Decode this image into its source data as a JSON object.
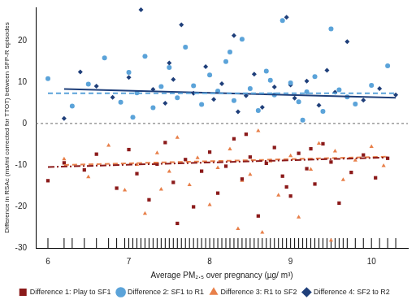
{
  "chart_data": {
    "type": "scatter",
    "x_label": "Average PM₂.₅ over pregnancy (µg/ m³)",
    "y_label": "Difference in RSAc (ms/ml corrected for TTOT) between SFP-R episodes",
    "xlim": [
      5.85,
      10.45
    ],
    "xticks": [
      6,
      7,
      8,
      9,
      10
    ],
    "ylim": [
      -30,
      28
    ],
    "yticks": [
      -30,
      -20,
      -10,
      0,
      10,
      20
    ],
    "grid": false,
    "legend": "bottom",
    "hline": 0,
    "rug": [
      6.0,
      6.2,
      6.3,
      6.45,
      6.6,
      6.75,
      6.85,
      6.95,
      7.0,
      7.05,
      7.1,
      7.15,
      7.2,
      7.25,
      7.3,
      7.35,
      7.4,
      7.45,
      7.5,
      7.55,
      7.6,
      7.65,
      7.7,
      7.75,
      7.8,
      7.85,
      7.9,
      7.95,
      8.0,
      8.05,
      8.1,
      8.15,
      8.2,
      8.25,
      8.3,
      8.35,
      8.4,
      8.45,
      8.5,
      8.55,
      8.6,
      8.65,
      8.7,
      8.75,
      8.8,
      8.85,
      8.9,
      8.95,
      9.0,
      9.05,
      9.1,
      9.15,
      9.2,
      9.25,
      9.3,
      9.35,
      9.4,
      9.45,
      9.5,
      9.55,
      9.6,
      9.65,
      9.7,
      9.8,
      9.9,
      10.0,
      10.1,
      10.2,
      10.3
    ],
    "series": [
      {
        "name": "Difference 1: Play to SF1",
        "color": "#8b1a1a",
        "marker": "square",
        "line_style": "dashdot",
        "x": [
          6.0,
          6.2,
          6.45,
          6.6,
          6.85,
          7.0,
          7.1,
          7.25,
          7.35,
          7.45,
          7.55,
          7.7,
          7.8,
          7.9,
          8.0,
          8.1,
          8.2,
          8.3,
          8.4,
          8.5,
          8.6,
          8.7,
          8.8,
          8.9,
          9.0,
          9.1,
          9.2,
          9.3,
          9.4,
          9.5,
          9.6,
          9.75,
          9.9,
          10.05,
          10.2,
          7.6,
          8.45,
          8.95,
          9.25
        ],
        "values": [
          -13.8,
          -9.5,
          -11.2,
          -7.4,
          -15.6,
          -6.3,
          -12.1,
          -18.4,
          -9.8,
          -4.6,
          -14.2,
          -8.7,
          -20.1,
          -11.5,
          -6.9,
          -16.8,
          -10.3,
          -3.7,
          -13.4,
          -8.1,
          -22.3,
          -9.6,
          -5.8,
          -12.7,
          -17.5,
          -7.2,
          -10.9,
          -14.6,
          -4.9,
          -9.3,
          -19.2,
          -11.8,
          -7.6,
          -13.1,
          -8.4,
          -24.1,
          -2.6,
          -15.3,
          -6.1
        ],
        "trend": {
          "x": [
            6.0,
            10.2
          ],
          "values": [
            -10.5,
            -8.2
          ]
        }
      },
      {
        "name": "Difference 2: SF1 to R1",
        "color": "#5ba3d9",
        "marker": "circle",
        "line_style": "dashed",
        "x": [
          6.0,
          6.3,
          6.5,
          6.7,
          6.9,
          7.0,
          7.1,
          7.2,
          7.3,
          7.4,
          7.5,
          7.6,
          7.7,
          7.8,
          7.9,
          8.0,
          8.1,
          8.2,
          8.3,
          8.4,
          8.5,
          8.6,
          8.7,
          8.8,
          8.9,
          9.0,
          9.1,
          9.2,
          9.3,
          9.4,
          9.5,
          9.6,
          9.7,
          9.8,
          10.0,
          10.2,
          7.05,
          8.25,
          8.75,
          9.15
        ],
        "values": [
          10.8,
          4.2,
          9.5,
          15.8,
          5.1,
          12.3,
          7.4,
          16.2,
          3.8,
          8.9,
          13.5,
          6.2,
          18.4,
          9.1,
          4.6,
          11.7,
          7.8,
          14.9,
          5.5,
          20.3,
          8.4,
          3.1,
          12.6,
          6.9,
          24.8,
          9.8,
          5.2,
          7.6,
          11.3,
          2.9,
          22.8,
          8.1,
          6.4,
          4.7,
          9.2,
          13.9,
          1.5,
          17.2,
          10.4,
          0.8
        ],
        "trend": {
          "x": [
            6.0,
            10.3
          ],
          "values": [
            7.3,
            7.3
          ]
        }
      },
      {
        "name": "Difference 3: R1 to SF2",
        "color": "#e8804a",
        "marker": "triangle",
        "line_style": "dashed",
        "x": [
          6.2,
          6.5,
          6.75,
          6.95,
          7.1,
          7.2,
          7.35,
          7.5,
          7.6,
          7.75,
          7.85,
          8.0,
          8.1,
          8.25,
          8.35,
          8.5,
          8.6,
          8.75,
          8.85,
          9.0,
          9.1,
          9.25,
          9.35,
          9.5,
          9.65,
          9.8,
          10.0,
          10.15,
          7.4,
          8.65,
          9.55,
          8.4
        ],
        "values": [
          -8.6,
          -12.9,
          -5.3,
          -16.1,
          -9.9,
          -21.7,
          -7.1,
          -11.6,
          -3.4,
          -14.8,
          -8.3,
          -19.6,
          -10.7,
          -6.2,
          -25.4,
          -12.3,
          -1.8,
          -9.1,
          -17.3,
          -7.8,
          -22.6,
          -11.1,
          -4.8,
          -28.2,
          -13.6,
          -8.9,
          -5.6,
          -10.2,
          -15.9,
          -26.3,
          -6.7,
          -13.8
        ],
        "trend": {
          "x": [
            6.2,
            10.2
          ],
          "values": [
            -10.0,
            -8.0
          ]
        }
      },
      {
        "name": "Difference 4: SF2 to R2",
        "color": "#1f3f7a",
        "marker": "diamond",
        "line_style": "solid",
        "x": [
          6.2,
          6.4,
          6.6,
          6.8,
          7.0,
          7.15,
          7.3,
          7.45,
          7.55,
          7.65,
          7.8,
          7.95,
          8.05,
          8.15,
          8.3,
          8.45,
          8.55,
          8.65,
          8.8,
          8.95,
          9.05,
          9.2,
          9.35,
          9.45,
          9.55,
          9.7,
          9.9,
          10.1,
          10.3,
          7.5,
          8.35,
          9.0
        ],
        "values": [
          1.2,
          12.4,
          9.0,
          6.3,
          11.1,
          27.4,
          8.2,
          4.9,
          10.6,
          23.8,
          7.3,
          13.7,
          5.8,
          9.6,
          21.2,
          6.7,
          11.9,
          3.9,
          8.8,
          25.6,
          6.1,
          10.2,
          4.4,
          12.8,
          7.5,
          19.7,
          5.6,
          8.4,
          6.9,
          14.6,
          2.8,
          9.3
        ],
        "trend": {
          "x": [
            6.2,
            10.3
          ],
          "values": [
            8.3,
            6.2
          ]
        }
      }
    ]
  }
}
